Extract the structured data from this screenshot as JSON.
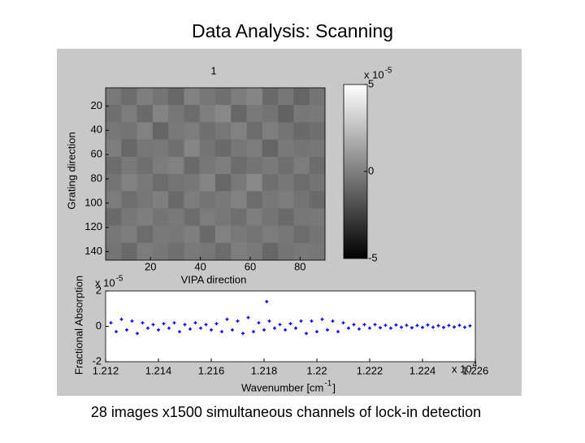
{
  "slide_title": "Data Analysis: Scanning",
  "caption": "28 images x1500 simultaneous channels of lock-in detection",
  "chart_data": [
    {
      "type": "heatmap",
      "title": "1",
      "x_label": "VIPA direction",
      "y_label": "Grating direction",
      "xlim": [
        2,
        90
      ],
      "xticks": [
        20,
        40,
        60,
        80
      ],
      "ylim": [
        5,
        147
      ],
      "yticks": [
        20,
        40,
        60,
        80,
        100,
        120,
        140
      ],
      "y_reversed": true,
      "clim": [
        -5,
        5
      ],
      "cticks": [
        -5,
        0,
        5
      ],
      "colorbar_multiplier": {
        "base": "x 10",
        "exponent": "-5"
      },
      "z": [
        [
          0.3,
          -0.2,
          0.5,
          0.1,
          -0.4,
          0.6,
          0.2,
          -0.1,
          0.4,
          0.8,
          -0.3,
          0.2,
          -0.5,
          0.1
        ],
        [
          -0.1,
          0.4,
          -0.3,
          0.7,
          0.2,
          -0.2,
          0.5,
          0.9,
          -0.4,
          0.3,
          0.1,
          -0.6,
          0.2,
          0.3
        ],
        [
          0.2,
          0.1,
          0.6,
          -0.5,
          0.3,
          0.4,
          -0.1,
          0.2,
          0.6,
          -0.2,
          0.5,
          0.1,
          -0.3,
          -0.1
        ],
        [
          0.5,
          -0.4,
          0.2,
          0.3,
          -0.1,
          0.8,
          0.1,
          -0.3,
          0.2,
          0.4,
          -0.5,
          0.3,
          0.1,
          0.2
        ],
        [
          -0.2,
          0.3,
          -0.1,
          0.4,
          0.6,
          -0.3,
          0.2,
          0.5,
          -0.2,
          0.1,
          0.3,
          -0.1,
          0.4,
          -0.2
        ],
        [
          0.1,
          0.6,
          0.3,
          -0.2,
          0.1,
          0.2,
          0.7,
          -0.4,
          0.3,
          0.9,
          -0.1,
          0.2,
          -0.2,
          0.1
        ],
        [
          0.4,
          -0.1,
          0.2,
          0.5,
          -0.3,
          0.4,
          0.1,
          0.3,
          0.6,
          -0.2,
          0.2,
          0.4,
          0.1,
          -0.3
        ],
        [
          -0.3,
          0.2,
          0.5,
          0.1,
          0.3,
          -0.2,
          0.4,
          0.2,
          -0.1,
          0.5,
          0.1,
          -0.3,
          0.2,
          0.3
        ],
        [
          0.2,
          0.4,
          -0.2,
          0.3,
          0.2,
          0.5,
          -0.3,
          0.6,
          0.3,
          0.1,
          0.4,
          0.2,
          -0.2,
          0.1
        ],
        [
          0.1,
          -0.3,
          0.4,
          0.2,
          -0.1,
          0.3,
          0.2,
          -0.2,
          0.5,
          0.3,
          -0.4,
          0.1,
          0.3,
          0.2
        ]
      ]
    },
    {
      "type": "scatter",
      "x_label": {
        "text": "Wavenumber [cm",
        "exponent": "-1",
        "suffix": "]"
      },
      "y_label": "Fractional Absorption",
      "x_multiplier": {
        "base": "x 10",
        "exponent": "4"
      },
      "y_multiplier": {
        "base": "x 10",
        "exponent": "-5"
      },
      "xlim": [
        1.212,
        1.226
      ],
      "xticks": [
        1.212,
        1.214,
        1.216,
        1.218,
        1.22,
        1.222,
        1.224,
        1.226
      ],
      "ylim": [
        -2,
        2
      ],
      "yticks": [
        -2,
        0,
        2
      ],
      "series": [
        {
          "color": "#0000ff",
          "x": [
            1.2122,
            1.2124,
            1.2126,
            1.2128,
            1.213,
            1.2132,
            1.2134,
            1.2136,
            1.2138,
            1.214,
            1.2142,
            1.2144,
            1.2146,
            1.2148,
            1.215,
            1.2152,
            1.2154,
            1.2156,
            1.2158,
            1.216,
            1.2162,
            1.2164,
            1.2166,
            1.2168,
            1.217,
            1.2172,
            1.2174,
            1.2176,
            1.2178,
            1.218,
            1.2182,
            1.2184,
            1.2186,
            1.2188,
            1.219,
            1.2192,
            1.2194,
            1.2196,
            1.2198,
            1.22,
            1.2202,
            1.2204,
            1.2206,
            1.2208,
            1.221,
            1.2212,
            1.2214,
            1.2216,
            1.2218,
            1.222,
            1.2222,
            1.2224,
            1.2226,
            1.2228,
            1.223,
            1.2232,
            1.2234,
            1.2236,
            1.2238,
            1.224,
            1.2242,
            1.2244,
            1.2246,
            1.2248,
            1.225,
            1.2252,
            1.2254,
            1.2256,
            1.2258,
            1.2181
          ],
          "y": [
            0.2,
            -0.3,
            0.4,
            -0.2,
            0.3,
            -0.4,
            0.2,
            -0.1,
            0.1,
            -0.2,
            0.15,
            -0.1,
            0.2,
            -0.3,
            0.1,
            -0.15,
            0.2,
            -0.1,
            0.1,
            -0.2,
            0.15,
            -0.3,
            0.4,
            -0.2,
            0.3,
            -0.4,
            0.5,
            -0.3,
            0.2,
            -0.2,
            0.3,
            -0.1,
            0.1,
            -0.2,
            0.15,
            -0.1,
            0.3,
            -0.4,
            0.3,
            -0.3,
            0.4,
            -0.2,
            0.3,
            -0.3,
            0.2,
            -0.1,
            0.1,
            -0.15,
            0.1,
            -0.1,
            0.1,
            -0.08,
            0.06,
            -0.1,
            0.08,
            -0.05,
            0.06,
            -0.08,
            0.05,
            -0.06,
            0.08,
            -0.05,
            0.04,
            -0.06,
            0.05,
            -0.04,
            0.06,
            -0.05,
            0.03,
            1.4
          ]
        }
      ]
    }
  ]
}
